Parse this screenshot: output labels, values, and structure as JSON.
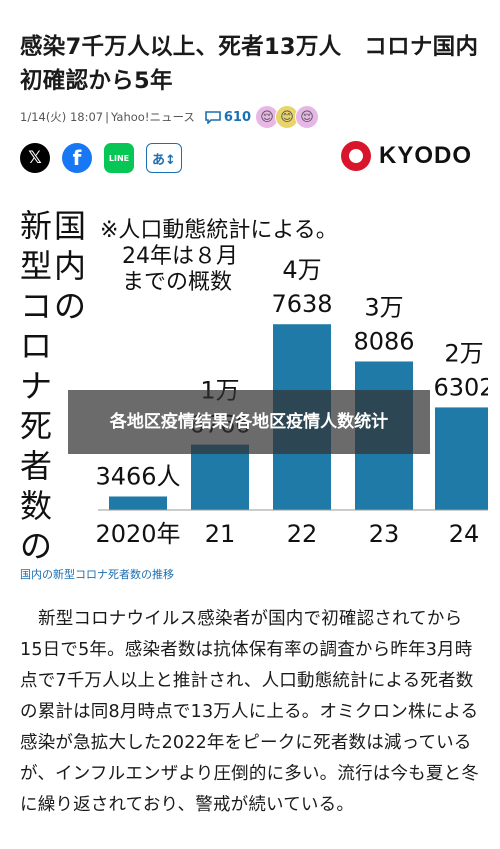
{
  "article": {
    "headline": "感染7千万人以上、死者13万人　コロナ国内初確認から5年",
    "date": "1/14(火) 18:07",
    "source": "Yahoo!ニュース",
    "comments": "610",
    "reactions": [
      "😌",
      "😊",
      "😌"
    ]
  },
  "share": {
    "x_label": "𝕏",
    "facebook_label": "f",
    "line_label": "LINE",
    "font_size_label": "あ↕"
  },
  "publisher": {
    "name": "KYODO"
  },
  "chart_data": {
    "type": "bar",
    "title": "国内の新型コロナ死者数の推移",
    "note_lines": [
      "※人口動態統計による。",
      "24年は８月",
      "までの概数"
    ],
    "categories": [
      "2020年",
      "21",
      "22",
      "23",
      "24"
    ],
    "values": [
      3466,
      16766,
      47638,
      38086,
      26302
    ],
    "value_labels": [
      {
        "top": "",
        "bottom": "3466人"
      },
      {
        "top": "1万",
        "bottom": "6766"
      },
      {
        "top": "4万",
        "bottom": "7638"
      },
      {
        "top": "3万",
        "bottom": "8086"
      },
      {
        "top": "2万",
        "bottom": "6302"
      }
    ],
    "ylim": [
      0,
      50000
    ],
    "bar_color": "#1f7aa8"
  },
  "caption": "国内の新型コロナ死者数の推移",
  "body_text": "新型コロナウイルス感染者が国内で初確認されてから15日で5年。感染者数は抗体保有率の調査から昨年3月時点で7千万人以上と推計され、人口動態統計による死者数の累計は同8月時点で13万人に上る。オミクロン株による感染が急拡大した2022年をピークに死者数は減っているが、インフルエンザより圧倒的に多い。流行は今も夏と冬に繰り返されており、警戒が続いている。",
  "overlay_text": "各地区疫情结果/各地区疫情人数统计"
}
